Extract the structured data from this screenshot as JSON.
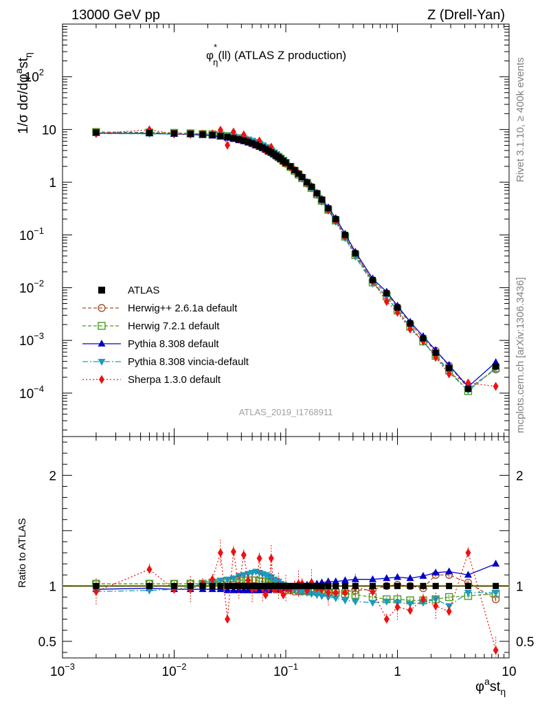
{
  "header": {
    "left": "13000 GeV pp",
    "right": "Z (Drell-Yan)"
  },
  "side": {
    "rivet": "Rivet 3.1.10, ≥ 400k events",
    "mcplots": "mcplots.cern.ch [arXiv:1306.3436]"
  },
  "chart_data": {
    "type": "scatter",
    "title": "φη*(ll) (ATLAS Z production)",
    "title_main": "φ",
    "title_sub": "η",
    "title_sup": "*",
    "title_rest": "(ll) (ATLAS Z production)",
    "analysis_id": "ATLAS_2019_I1768911",
    "xlabel_main": "φ",
    "xlabel_sup": "a",
    "xlabel_mid": "st",
    "xlabel_sub": "η",
    "ylabel": "1/σ dσ/dφ^ast_η",
    "ylabel_parts": [
      "1/σ dσ/dφ",
      "a",
      "st",
      "η"
    ],
    "ratio_ylabel": "Ratio to ATLAS",
    "xscale": "log",
    "yscale": "log",
    "xlim": [
      0.001,
      10
    ],
    "ylim": [
      1.5e-05,
      1000
    ],
    "ratio_ylim": [
      0.35,
      2.35
    ],
    "x_ticks": [
      {
        "v": 0.001,
        "base": "10",
        "exp": "−3"
      },
      {
        "v": 0.01,
        "base": "10",
        "exp": "−2"
      },
      {
        "v": 0.1,
        "base": "10",
        "exp": "−1"
      },
      {
        "v": 1,
        "base": "1",
        "exp": ""
      },
      {
        "v": 10,
        "base": "10",
        "exp": ""
      }
    ],
    "y_ticks": [
      {
        "v": 100,
        "base": "10",
        "exp": "2"
      },
      {
        "v": 10,
        "base": "10",
        "exp": ""
      },
      {
        "v": 1,
        "base": "1",
        "exp": ""
      },
      {
        "v": 0.1,
        "base": "10",
        "exp": "−1"
      },
      {
        "v": 0.01,
        "base": "10",
        "exp": "−2"
      },
      {
        "v": 0.001,
        "base": "10",
        "exp": "−3"
      },
      {
        "v": 0.0001,
        "base": "10",
        "exp": "−4"
      }
    ],
    "ratio_ticks": [
      {
        "v": 0.5,
        "label": "0.5"
      },
      {
        "v": 1,
        "label": "1"
      },
      {
        "v": 2,
        "label": "2"
      }
    ],
    "x": [
      0.002,
      0.006,
      0.01,
      0.014,
      0.018,
      0.022,
      0.026,
      0.03,
      0.034,
      0.038,
      0.042,
      0.046,
      0.05,
      0.054,
      0.058,
      0.062,
      0.066,
      0.07,
      0.074,
      0.078,
      0.082,
      0.086,
      0.09,
      0.095,
      0.1,
      0.11,
      0.12,
      0.13,
      0.14,
      0.155,
      0.17,
      0.19,
      0.21,
      0.24,
      0.28,
      0.34,
      0.42,
      0.6,
      0.8,
      1.0,
      1.3,
      1.7,
      2.2,
      2.9,
      4.3,
      7.6
    ],
    "data": [
      8.8,
      8.6,
      8.45,
      8.3,
      8.05,
      7.85,
      7.5,
      7.2,
      6.85,
      6.5,
      6.2,
      5.85,
      5.5,
      5.15,
      4.85,
      4.55,
      4.25,
      3.95,
      3.7,
      3.45,
      3.2,
      3.0,
      2.8,
      2.55,
      2.35,
      2.0,
      1.7,
      1.45,
      1.25,
      1.0,
      0.82,
      0.62,
      0.47,
      0.32,
      0.2,
      0.1,
      0.045,
      0.014,
      0.0078,
      0.0042,
      0.0021,
      0.0011,
      0.00058,
      0.0003,
      0.00012,
      0.00032
    ],
    "series": [
      {
        "name": "ATLAS",
        "color": "#000000",
        "marker": "square-filled",
        "dash": "none",
        "ratio": [
          1,
          1,
          1,
          1,
          1,
          1,
          1,
          1,
          1,
          1,
          1,
          1,
          1,
          1,
          1,
          1,
          1,
          1,
          1,
          1,
          1,
          1,
          1,
          1,
          1,
          1,
          1,
          1,
          1,
          1,
          1,
          1,
          1,
          1,
          1,
          1,
          1,
          1,
          1,
          1,
          1,
          1,
          1,
          1,
          1,
          1
        ]
      },
      {
        "name": "Herwig++ 2.6.1a default",
        "color": "#a0522d",
        "marker": "circle-open",
        "dash": "5,3",
        "ratio": [
          1.02,
          1.02,
          1.02,
          1.02,
          1.02,
          1.02,
          1.02,
          1.01,
          1.01,
          1.0,
          1.0,
          1.0,
          1.0,
          1.0,
          0.99,
          0.99,
          0.99,
          0.98,
          0.98,
          0.98,
          0.97,
          0.97,
          0.97,
          0.96,
          0.96,
          0.96,
          0.95,
          0.95,
          0.95,
          0.95,
          0.95,
          0.94,
          0.94,
          0.94,
          0.95,
          0.95,
          0.96,
          0.97,
          1.0,
          1.01,
          1.0,
          0.98,
          1.1,
          1.1,
          1.03,
          0.88
        ]
      },
      {
        "name": "Herwig 7.2.1 default",
        "color": "#4a9a1e",
        "marker": "square-open",
        "dash": "5,3",
        "ratio": [
          1.02,
          1.02,
          1.02,
          1.02,
          1.02,
          1.03,
          1.03,
          1.04,
          1.04,
          1.05,
          1.05,
          1.05,
          1.05,
          1.05,
          1.04,
          1.04,
          1.04,
          1.03,
          1.03,
          1.02,
          1.02,
          1.01,
          1.0,
          1.0,
          0.99,
          0.98,
          0.97,
          0.97,
          0.96,
          0.96,
          0.95,
          0.95,
          0.95,
          0.94,
          0.94,
          0.93,
          0.92,
          0.9,
          0.88,
          0.88,
          0.87,
          0.87,
          0.88,
          0.9,
          0.91,
          0.93
        ]
      },
      {
        "name": "Pythia 8.308 default",
        "color": "#0000cc",
        "marker": "triangle-up-filled",
        "dash": "none",
        "ratio": [
          0.97,
          0.98,
          0.97,
          0.97,
          0.97,
          0.97,
          0.97,
          0.96,
          0.96,
          0.96,
          0.96,
          0.96,
          0.96,
          0.96,
          0.96,
          0.96,
          0.96,
          0.96,
          0.97,
          0.97,
          0.97,
          0.97,
          0.98,
          0.98,
          0.98,
          0.99,
          0.99,
          1.0,
          1.0,
          1.01,
          1.01,
          1.02,
          1.03,
          1.04,
          1.04,
          1.05,
          1.06,
          1.06,
          1.07,
          1.08,
          1.07,
          1.09,
          1.12,
          1.13,
          1.1,
          1.2
        ]
      },
      {
        "name": "Pythia 8.308 vincia-default",
        "color": "#1a9bc0",
        "marker": "triangle-down-filled",
        "dash": "8,3,2,3",
        "ratio": [
          0.95,
          0.96,
          0.97,
          0.99,
          1.02,
          1.03,
          1.05,
          1.06,
          1.07,
          1.09,
          1.1,
          1.11,
          1.12,
          1.13,
          1.12,
          1.11,
          1.1,
          1.09,
          1.08,
          1.06,
          1.05,
          1.04,
          1.02,
          1.01,
          1.0,
          0.98,
          0.97,
          0.96,
          0.95,
          0.94,
          0.93,
          0.92,
          0.91,
          0.9,
          0.89,
          0.87,
          0.86,
          0.85,
          0.86,
          0.85,
          0.84,
          0.85,
          0.88,
          0.82,
          0.94,
          0.94
        ]
      },
      {
        "name": "Sherpa 1.3.0 default",
        "color": "#ee1111",
        "marker": "diamond-filled",
        "dash": "2,3",
        "ratio": [
          0.95,
          1.15,
          0.97,
          0.97,
          1.02,
          1.06,
          1.3,
          0.7,
          1.31,
          1.0,
          1.28,
          1.05,
          0.97,
          0.98,
          1.25,
          0.98,
          0.92,
          0.98,
          1.25,
          0.97,
          0.98,
          1.0,
          0.97,
          0.92,
          0.98,
          0.97,
          1.0,
          1.02,
          1.02,
          0.96,
          1.03,
          0.98,
          0.97,
          0.94,
          0.94,
          0.94,
          0.99,
          0.95,
          0.7,
          0.81,
          0.78,
          0.88,
          0.82,
          0.77,
          1.3,
          0.42
        ]
      }
    ]
  }
}
